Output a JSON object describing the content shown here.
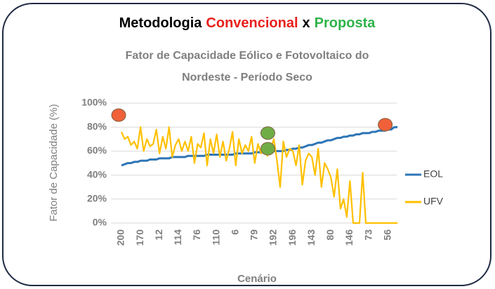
{
  "chart_data": {
    "type": "line",
    "heading": [
      {
        "text": "Metodologia",
        "color": "#000000"
      },
      {
        "text": "Convencional",
        "color": "#e8201c"
      },
      {
        "text": "x",
        "color": "#000000"
      },
      {
        "text": "Proposta",
        "color": "#2fb34a"
      }
    ],
    "title": [
      "Fator de Capacidade Eólico e Fotovoltaico do",
      "Nordeste - Período Seco"
    ],
    "y_label": "Fator de Capacidade (%)",
    "x_label": "Cenário",
    "categories": [
      "200",
      null,
      null,
      null,
      null,
      null,
      "170",
      null,
      null,
      null,
      null,
      null,
      "12",
      null,
      null,
      null,
      null,
      null,
      "114",
      null,
      null,
      null,
      null,
      null,
      "76",
      null,
      null,
      null,
      null,
      null,
      "110",
      null,
      null,
      null,
      null,
      null,
      "6",
      null,
      null,
      null,
      null,
      null,
      "79",
      null,
      null,
      null,
      null,
      null,
      "192",
      null,
      null,
      null,
      null,
      null,
      "196",
      null,
      null,
      null,
      null,
      null,
      "143",
      null,
      null,
      null,
      null,
      null,
      "80",
      null,
      null,
      null,
      null,
      null,
      "146",
      null,
      null,
      null,
      null,
      null,
      "73",
      null,
      null,
      null,
      null,
      null,
      "56",
      null,
      null,
      null
    ],
    "series": [
      {
        "name": "EOL",
        "color": "#2e75b6",
        "values": [
          48,
          49,
          50,
          50,
          51,
          51,
          52,
          52,
          52,
          53,
          53,
          53,
          54,
          54,
          54,
          54,
          55,
          55,
          55,
          55,
          55,
          56,
          56,
          56,
          56,
          56,
          56,
          57,
          57,
          57,
          57,
          57,
          57,
          57,
          57,
          57,
          58,
          58,
          58,
          58,
          58,
          58,
          59,
          59,
          59,
          59,
          59,
          60,
          60,
          60,
          60,
          60,
          61,
          61,
          62,
          62,
          63,
          63,
          64,
          65,
          65,
          66,
          67,
          67,
          68,
          69,
          69,
          70,
          71,
          71,
          72,
          72,
          73,
          73,
          74,
          74,
          75,
          75,
          75,
          76,
          76,
          77,
          77,
          77,
          78,
          78,
          80,
          80
        ]
      },
      {
        "name": "UFV",
        "color": "#ffc000",
        "values": [
          76,
          70,
          72,
          65,
          68,
          62,
          80,
          60,
          70,
          64,
          66,
          78,
          58,
          72,
          62,
          80,
          55,
          65,
          70,
          60,
          68,
          60,
          72,
          50,
          66,
          63,
          75,
          48,
          70,
          58,
          74,
          55,
          68,
          52,
          62,
          76,
          48,
          70,
          58,
          65,
          60,
          72,
          50,
          66,
          58,
          64,
          56,
          62,
          70,
          52,
          30,
          68,
          55,
          62,
          60,
          48,
          65,
          32,
          52,
          58,
          55,
          40,
          62,
          30,
          50,
          45,
          38,
          22,
          45,
          12,
          20,
          5,
          35,
          0,
          0,
          0,
          42,
          0,
          0,
          0,
          0,
          0,
          0,
          0,
          0,
          0,
          0,
          0
        ]
      }
    ],
    "highlights": [
      {
        "index": 0,
        "value": 90,
        "color": "#f0613a"
      },
      {
        "index": 84,
        "value": 82,
        "color": "#f0613a"
      },
      {
        "index": 47,
        "value": 75,
        "color": "#70ad47"
      },
      {
        "index": 47,
        "value": 62,
        "color": "#70ad47"
      }
    ],
    "ylim": [
      0,
      100
    ],
    "yticks": [
      {
        "value": 0,
        "label": "0%"
      },
      {
        "value": 20,
        "label": "20%"
      },
      {
        "value": 40,
        "label": "40%"
      },
      {
        "value": 60,
        "label": "60%"
      },
      {
        "value": 80,
        "label": "80%"
      },
      {
        "value": 100,
        "label": "100%"
      }
    ],
    "grid": true
  }
}
